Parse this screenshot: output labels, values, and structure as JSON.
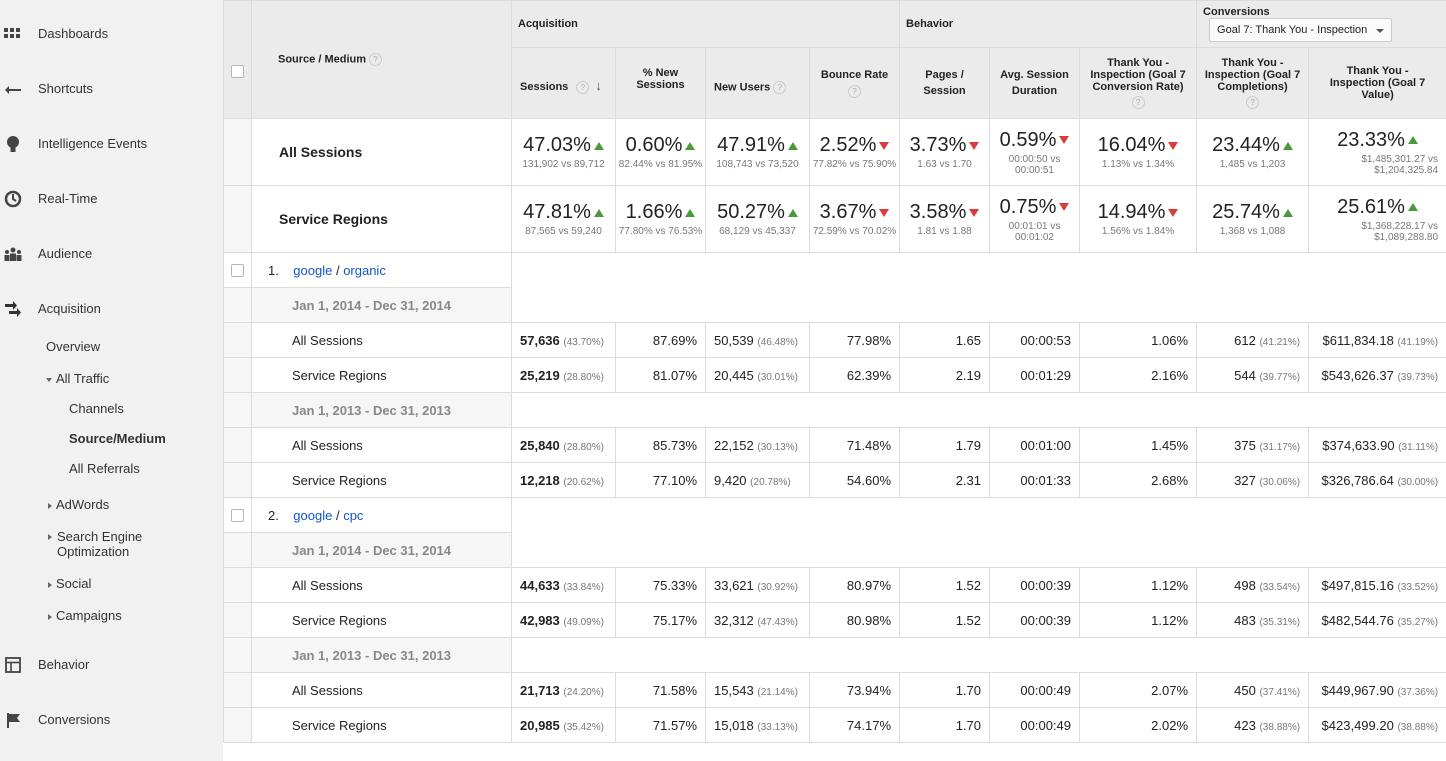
{
  "sidebar": {
    "items": [
      {
        "label": "Dashboards",
        "icon": "grid-icon"
      },
      {
        "label": "Shortcuts",
        "icon": "shortcut-arrow-icon"
      },
      {
        "label": "Intelligence Events",
        "icon": "lightbulb-icon"
      },
      {
        "label": "Real-Time",
        "icon": "clock-icon"
      },
      {
        "label": "Audience",
        "icon": "people-icon"
      },
      {
        "label": "Acquisition",
        "icon": "acquisition-arrows-icon"
      },
      {
        "label": "Behavior",
        "icon": "behavior-layout-icon"
      },
      {
        "label": "Conversions",
        "icon": "flag-icon"
      }
    ],
    "acquisition_sub": {
      "overview": "Overview",
      "all_traffic": "All Traffic",
      "channels": "Channels",
      "source_medium": "Source/Medium",
      "all_referrals": "All Referrals",
      "adwords": "AdWords",
      "seo": "Search Engine Optimization",
      "social": "Social",
      "campaigns": "Campaigns"
    }
  },
  "table": {
    "groups": {
      "acquisition": "Acquisition",
      "behavior": "Behavior",
      "conversions": "Conversions",
      "goal_select": "Goal 7: Thank You - Inspection"
    },
    "dimension_header": "Source / Medium",
    "columns": [
      "Sessions",
      "% New Sessions",
      "New Users",
      "Bounce Rate",
      "Pages / Session",
      "Avg. Session Duration",
      "Thank You - Inspection (Goal 7 Conversion Rate)",
      "Thank You - Inspection (Goal 7 Completions)",
      "Thank You - Inspection (Goal 7 Value)"
    ],
    "summary": [
      {
        "label": "All Sessions",
        "cells": [
          {
            "pct": "47.03%",
            "dir": "up",
            "sub": "131,902 vs 89,712"
          },
          {
            "pct": "0.60%",
            "dir": "up",
            "sub": "82.44% vs 81.95%"
          },
          {
            "pct": "47.91%",
            "dir": "up",
            "sub": "108,743 vs 73,520"
          },
          {
            "pct": "2.52%",
            "dir": "down",
            "sub": "77.82% vs 75.90%"
          },
          {
            "pct": "3.73%",
            "dir": "down",
            "sub": "1.63 vs 1.70"
          },
          {
            "pct": "0.59%",
            "dir": "down",
            "sub": "00:00:50 vs 00:00:51"
          },
          {
            "pct": "16.04%",
            "dir": "down",
            "sub": "1.13% vs 1.34%"
          },
          {
            "pct": "23.44%",
            "dir": "up",
            "sub": "1,485 vs 1,203"
          },
          {
            "pct": "23.33%",
            "dir": "up",
            "sub": "$1,485,301.27 vs $1,204,325.84"
          }
        ]
      },
      {
        "label": "Service Regions",
        "cells": [
          {
            "pct": "47.81%",
            "dir": "up",
            "sub": "87,565 vs 59,240"
          },
          {
            "pct": "1.66%",
            "dir": "up",
            "sub": "77.80% vs 76.53%"
          },
          {
            "pct": "50.27%",
            "dir": "up",
            "sub": "68,129 vs 45,337"
          },
          {
            "pct": "3.67%",
            "dir": "down",
            "sub": "72.59% vs 70.02%"
          },
          {
            "pct": "3.58%",
            "dir": "down",
            "sub": "1.81 vs 1.88"
          },
          {
            "pct": "0.75%",
            "dir": "down",
            "sub": "00:01:01 vs 00:01:02"
          },
          {
            "pct": "14.94%",
            "dir": "down",
            "sub": "1.56% vs 1.84%"
          },
          {
            "pct": "25.74%",
            "dir": "up",
            "sub": "1,368 vs 1,088"
          },
          {
            "pct": "25.61%",
            "dir": "up",
            "sub": "$1,368,228.17 vs $1,089,288.80"
          }
        ]
      }
    ],
    "sources": [
      {
        "index": "1.",
        "source": "google",
        "medium": "organic",
        "periods": [
          {
            "date": "Jan 1, 2014 - Dec 31, 2014",
            "rows": [
              {
                "label": "All Sessions",
                "sessions": "57,636",
                "sessions_pct": "(43.70%)",
                "new_sess": "87.69%",
                "new_users": "50,539",
                "new_users_pct": "(46.48%)",
                "bounce": "77.98%",
                "pages": "1.65",
                "duration": "00:00:53",
                "conv_rate": "1.06%",
                "completions": "612",
                "completions_pct": "(41.21%)",
                "value": "$611,834.18",
                "value_pct": "(41.19%)"
              },
              {
                "label": "Service Regions",
                "sessions": "25,219",
                "sessions_pct": "(28.80%)",
                "new_sess": "81.07%",
                "new_users": "20,445",
                "new_users_pct": "(30.01%)",
                "bounce": "62.39%",
                "pages": "2.19",
                "duration": "00:01:29",
                "conv_rate": "2.16%",
                "completions": "544",
                "completions_pct": "(39.77%)",
                "value": "$543,626.37",
                "value_pct": "(39.73%)"
              }
            ]
          },
          {
            "date": "Jan 1, 2013 - Dec 31, 2013",
            "rows": [
              {
                "label": "All Sessions",
                "sessions": "25,840",
                "sessions_pct": "(28.80%)",
                "new_sess": "85.73%",
                "new_users": "22,152",
                "new_users_pct": "(30.13%)",
                "bounce": "71.48%",
                "pages": "1.79",
                "duration": "00:01:00",
                "conv_rate": "1.45%",
                "completions": "375",
                "completions_pct": "(31.17%)",
                "value": "$374,633.90",
                "value_pct": "(31.11%)"
              },
              {
                "label": "Service Regions",
                "sessions": "12,218",
                "sessions_pct": "(20.62%)",
                "new_sess": "77.10%",
                "new_users": "9,420",
                "new_users_pct": "(20.78%)",
                "bounce": "54.60%",
                "pages": "2.31",
                "duration": "00:01:33",
                "conv_rate": "2.68%",
                "completions": "327",
                "completions_pct": "(30.06%)",
                "value": "$326,786.64",
                "value_pct": "(30.00%)"
              }
            ]
          }
        ]
      },
      {
        "index": "2.",
        "source": "google",
        "medium": "cpc",
        "periods": [
          {
            "date": "Jan 1, 2014 - Dec 31, 2014",
            "rows": [
              {
                "label": "All Sessions",
                "sessions": "44,633",
                "sessions_pct": "(33.84%)",
                "new_sess": "75.33%",
                "new_users": "33,621",
                "new_users_pct": "(30.92%)",
                "bounce": "80.97%",
                "pages": "1.52",
                "duration": "00:00:39",
                "conv_rate": "1.12%",
                "completions": "498",
                "completions_pct": "(33.54%)",
                "value": "$497,815.16",
                "value_pct": "(33.52%)"
              },
              {
                "label": "Service Regions",
                "sessions": "42,983",
                "sessions_pct": "(49.09%)",
                "new_sess": "75.17%",
                "new_users": "32,312",
                "new_users_pct": "(47.43%)",
                "bounce": "80.98%",
                "pages": "1.52",
                "duration": "00:00:39",
                "conv_rate": "1.12%",
                "completions": "483",
                "completions_pct": "(35.31%)",
                "value": "$482,544.76",
                "value_pct": "(35.27%)"
              }
            ]
          },
          {
            "date": "Jan 1, 2013 - Dec 31, 2013",
            "rows": [
              {
                "label": "All Sessions",
                "sessions": "21,713",
                "sessions_pct": "(24.20%)",
                "new_sess": "71.58%",
                "new_users": "15,543",
                "new_users_pct": "(21.14%)",
                "bounce": "73.94%",
                "pages": "1.70",
                "duration": "00:00:49",
                "conv_rate": "2.07%",
                "completions": "450",
                "completions_pct": "(37.41%)",
                "value": "$449,967.90",
                "value_pct": "(37.36%)"
              },
              {
                "label": "Service Regions",
                "sessions": "20,985",
                "sessions_pct": "(35.42%)",
                "new_sess": "71.57%",
                "new_users": "15,018",
                "new_users_pct": "(33.13%)",
                "bounce": "74.17%",
                "pages": "1.70",
                "duration": "00:00:49",
                "conv_rate": "2.02%",
                "completions": "423",
                "completions_pct": "(38.88%)",
                "value": "$423,499.20",
                "value_pct": "(38.88%)"
              }
            ]
          }
        ]
      }
    ]
  }
}
